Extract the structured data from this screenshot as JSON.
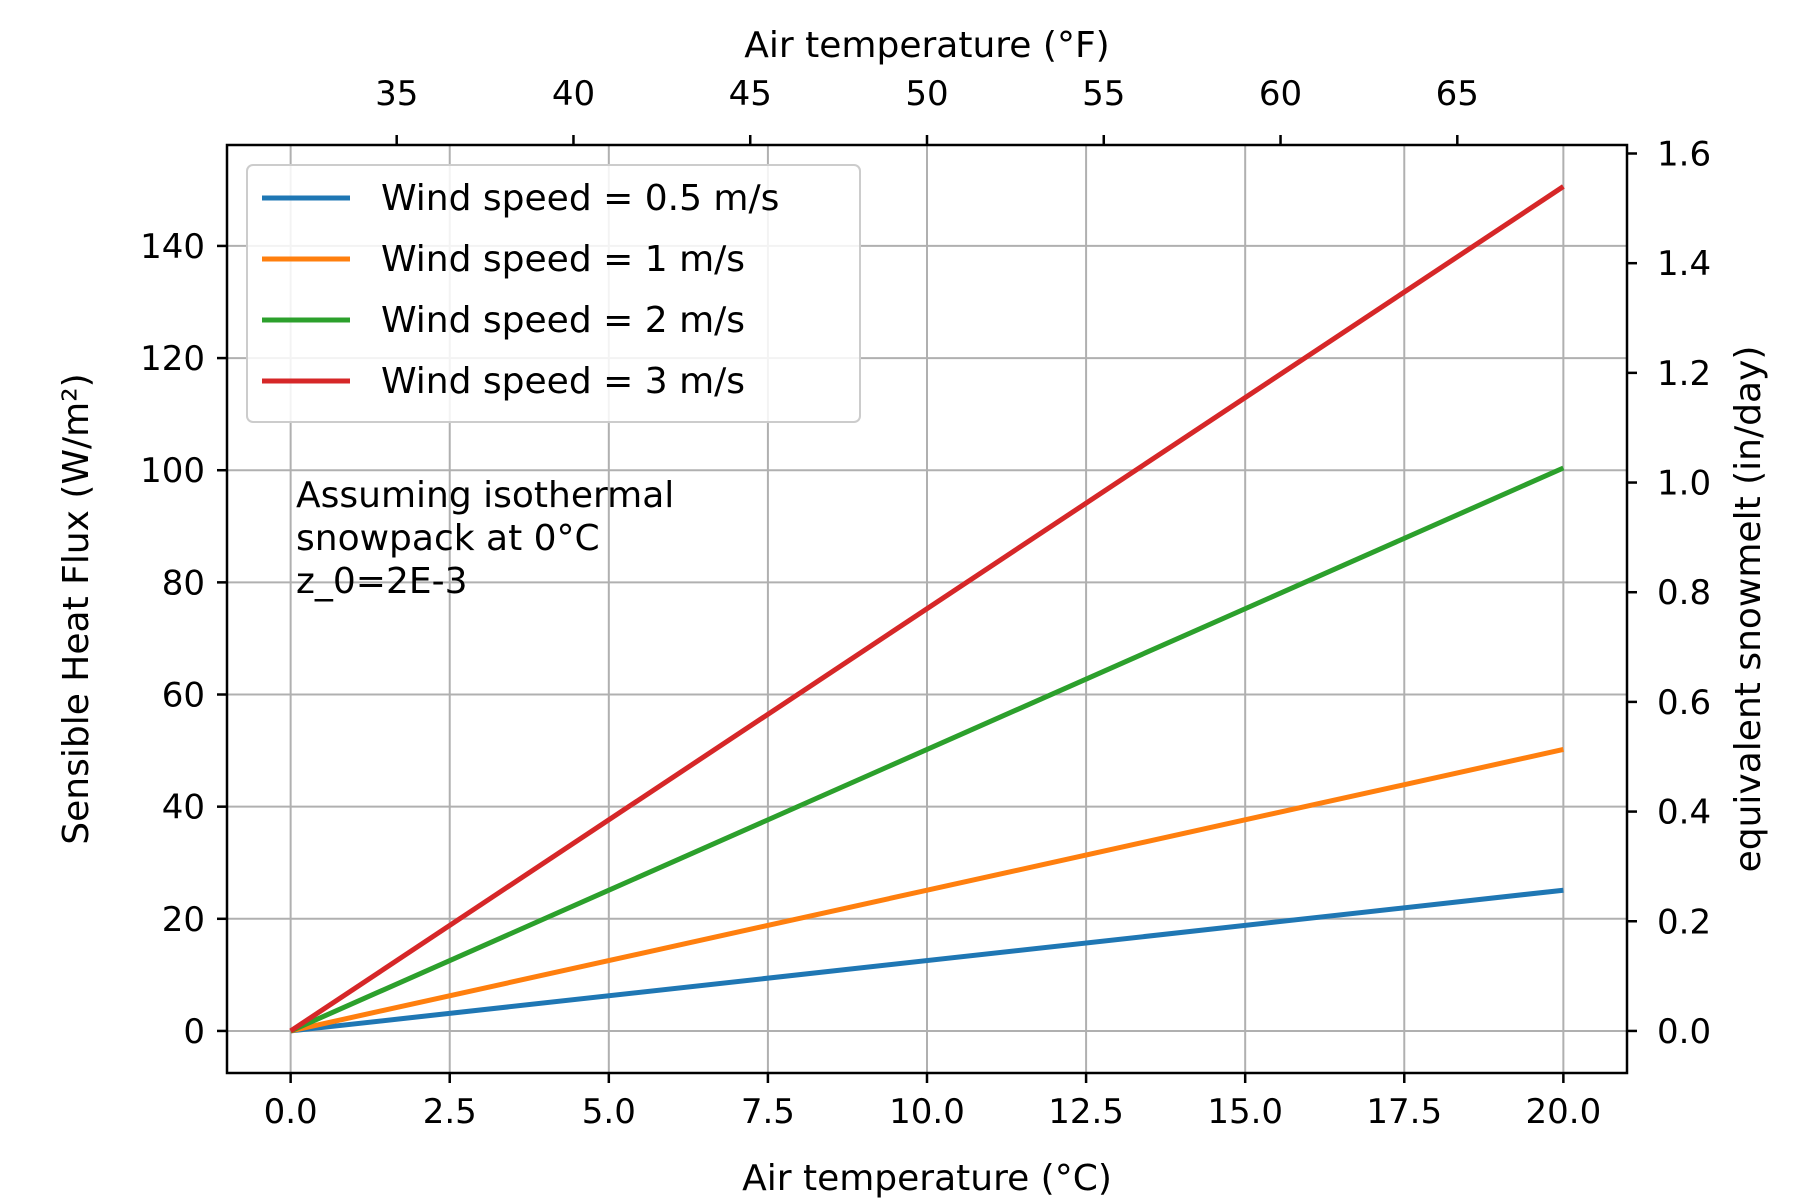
{
  "chart_data": {
    "type": "line",
    "x": [
      0,
      20
    ],
    "series": [
      {
        "name": "Wind speed = 0.5 m/s",
        "values": [
          0,
          25.1
        ],
        "color": "#1f77b4"
      },
      {
        "name": "Wind speed = 1 m/s",
        "values": [
          0,
          50.2
        ],
        "color": "#ff7f0e"
      },
      {
        "name": "Wind speed = 2 m/s",
        "values": [
          0,
          100.4
        ],
        "color": "#2ca02c"
      },
      {
        "name": "Wind speed = 3 m/s",
        "values": [
          0,
          150.6
        ],
        "color": "#d62728"
      }
    ],
    "xlabel": "Air temperature (°C)",
    "ylabel": "Sensible Heat Flux (W/m²)",
    "x2label": "Air temperature (°F)",
    "y2label": "equivalent snowmelt (in/day)",
    "xlim": [
      -1,
      21
    ],
    "ylim": [
      -7.5,
      158
    ],
    "y2lim": [
      -0.0767,
      1.6155
    ],
    "x2lim": [
      30.2,
      69.8
    ],
    "xticks": [
      0.0,
      2.5,
      5.0,
      7.5,
      10.0,
      12.5,
      15.0,
      17.5,
      20.0
    ],
    "xtick_labels": [
      "0.0",
      "2.5",
      "5.0",
      "7.5",
      "10.0",
      "12.5",
      "15.0",
      "17.5",
      "20.0"
    ],
    "yticks": [
      0,
      20,
      40,
      60,
      80,
      100,
      120,
      140
    ],
    "ytick_labels": [
      "0",
      "20",
      "40",
      "60",
      "80",
      "100",
      "120",
      "140"
    ],
    "x2ticks": [
      35,
      40,
      45,
      50,
      55,
      60,
      65
    ],
    "x2tick_labels": [
      "35",
      "40",
      "45",
      "50",
      "55",
      "60",
      "65"
    ],
    "y2ticks": [
      0.0,
      0.2,
      0.4,
      0.6,
      0.8,
      1.0,
      1.2,
      1.4,
      1.6
    ],
    "y2tick_labels": [
      "0.0",
      "0.2",
      "0.4",
      "0.6",
      "0.8",
      "1.0",
      "1.2",
      "1.4",
      "1.6"
    ],
    "grid": true,
    "legend_position": "top-left",
    "annotation": [
      "Assuming isothermal",
      "snowpack at 0°C",
      "z_0=2E-3"
    ]
  }
}
